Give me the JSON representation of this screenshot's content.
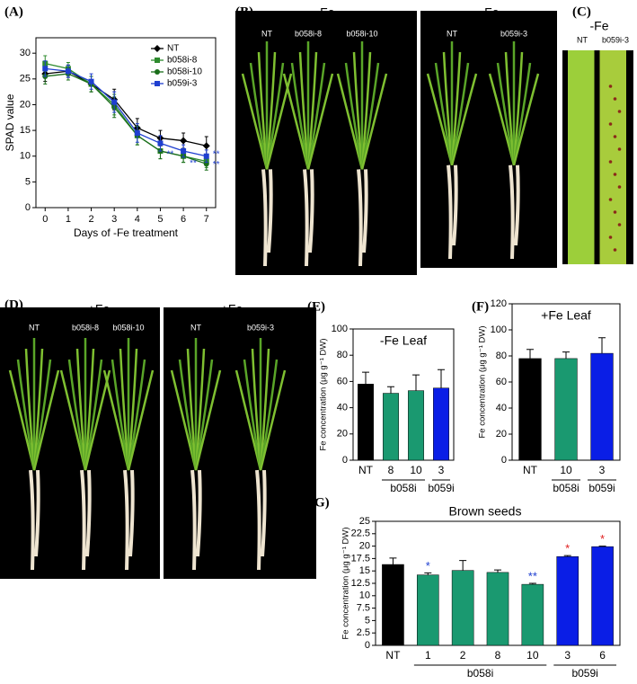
{
  "chart_data": [
    {
      "type": "line",
      "panel": "(A)",
      "ylabel": "SPAD value",
      "xlabel": "Days of -Fe treatment",
      "x": [
        0,
        1,
        2,
        3,
        4,
        5,
        6,
        7
      ],
      "xlim": [
        -0.4,
        7.4
      ],
      "xticks": [
        0,
        1,
        2,
        3,
        4,
        5,
        6,
        7
      ],
      "ylim": [
        0,
        33
      ],
      "yticks": [
        0,
        5,
        10,
        15,
        20,
        25,
        30
      ],
      "legend": "top-right",
      "series": [
        {
          "name": "NT",
          "color": "#000000",
          "marker": "diamond",
          "values": [
            26,
            26.5,
            24,
            21,
            15.5,
            13.5,
            13,
            12
          ],
          "errors": [
            1.5,
            1.2,
            1.5,
            2,
            1.8,
            1.5,
            1.5,
            1.8
          ]
        },
        {
          "name": "b058i-8",
          "color": "#2e8b2e",
          "marker": "square",
          "values": [
            28,
            27,
            24,
            20,
            14,
            11,
            10,
            9
          ],
          "errors": [
            1.5,
            1.2,
            1.5,
            2,
            1.8,
            1.5,
            1.2,
            1.2
          ]
        },
        {
          "name": "b058i-10",
          "color": "#1a6e1a",
          "marker": "circle",
          "values": [
            25.5,
            26,
            24,
            19.5,
            14,
            11,
            10,
            8.5
          ],
          "errors": [
            1.5,
            1.2,
            1.5,
            2,
            1.8,
            1.5,
            1.2,
            1.2
          ]
        },
        {
          "name": "b059i-3",
          "color": "#1f3fd0",
          "marker": "square",
          "values": [
            27,
            26.5,
            24.5,
            20.5,
            14.5,
            12.5,
            11,
            10
          ],
          "errors": [
            1.5,
            1.2,
            1.5,
            2,
            1.8,
            1.5,
            1.2,
            1.2
          ]
        }
      ],
      "annotations": [
        {
          "text": "**",
          "x": 5,
          "y": 10.3,
          "color": "#1f3fd0"
        },
        {
          "text": "**",
          "x": 6,
          "y": 8.6,
          "color": "#1f3fd0"
        },
        {
          "text": "**",
          "x": 7,
          "y": 10.3,
          "color": "#1f3fd0"
        },
        {
          "text": "**",
          "x": 7,
          "y": 8.3,
          "color": "#1f3fd0"
        }
      ]
    },
    {
      "type": "bar",
      "panel": "(E)",
      "title": "-Fe Leaf",
      "ylabel": "Fe concentration (μg g⁻¹ DW)",
      "categories": [
        "NT",
        "8",
        "10",
        "3"
      ],
      "groups": [
        null,
        "b058i",
        "b058i",
        "b059i"
      ],
      "values": [
        58,
        51,
        53,
        55
      ],
      "errors": [
        9,
        5,
        12,
        14
      ],
      "colors": [
        "#000000",
        "#1a9970",
        "#1a9970",
        "#0a1ee6"
      ],
      "ylim": [
        0,
        100
      ],
      "yticks": [
        0,
        20,
        40,
        60,
        80,
        100
      ]
    },
    {
      "type": "bar",
      "panel": "(F)",
      "title": "+Fe Leaf",
      "ylabel": "Fe concentration (μg g⁻¹ DW)",
      "categories": [
        "NT",
        "10",
        "3"
      ],
      "groups": [
        null,
        "b058i",
        "b059i"
      ],
      "values": [
        78,
        78,
        82
      ],
      "errors": [
        7,
        5,
        12
      ],
      "colors": [
        "#000000",
        "#1a9970",
        "#0a1ee6"
      ],
      "ylim": [
        0,
        120
      ],
      "yticks": [
        0,
        20,
        40,
        60,
        80,
        100,
        120
      ]
    },
    {
      "type": "bar",
      "panel": "(G)",
      "title": "Brown seeds",
      "ylabel": "Fe concentration (μg g⁻¹ DW)",
      "categories": [
        "NT",
        "1",
        "2",
        "8",
        "10",
        "3",
        "6"
      ],
      "groups": [
        null,
        "b058i",
        "b058i",
        "b058i",
        "b058i",
        "b059i",
        "b059i"
      ],
      "values": [
        16.3,
        14.2,
        15.1,
        14.7,
        12.3,
        17.9,
        19.9
      ],
      "errors": [
        1.3,
        0.4,
        2,
        0.5,
        0.2,
        0.2,
        0.1
      ],
      "colors": [
        "#000000",
        "#1a9970",
        "#1a9970",
        "#1a9970",
        "#1a9970",
        "#0a1ee6",
        "#0a1ee6"
      ],
      "annotations": [
        null,
        "*",
        null,
        null,
        "**",
        "*",
        "*"
      ],
      "annotation_colors": [
        null,
        "#1f3fd0",
        null,
        null,
        "#1f3fd0",
        "#e02020",
        "#e02020"
      ],
      "ylim": [
        0,
        25
      ],
      "yticks": [
        0,
        2.5,
        5,
        7.5,
        10,
        12.5,
        15,
        17.5,
        20,
        22.5,
        25
      ]
    }
  ],
  "photos": [
    {
      "panel": "(B)",
      "images": [
        {
          "header": "-Fe",
          "labels": [
            "NT",
            "b058i-8",
            "b058i-10"
          ]
        },
        {
          "header": "-Fe",
          "labels": [
            "NT",
            "b059i-3"
          ]
        }
      ]
    },
    {
      "panel": "(C)",
      "images": [
        {
          "header": "-Fe",
          "labels": [
            "NT",
            "b059i-3"
          ]
        }
      ]
    },
    {
      "panel": "(D)",
      "images": [
        {
          "header": "+Fe",
          "labels": [
            "NT",
            "b058i-8",
            "b058i-10"
          ]
        },
        {
          "header": "+Fe",
          "labels": [
            "NT",
            "b059i-3"
          ]
        }
      ]
    }
  ]
}
